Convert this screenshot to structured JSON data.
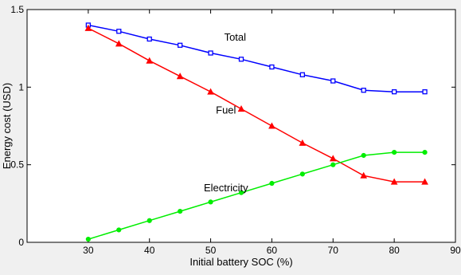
{
  "chart_data": {
    "type": "line",
    "title": "",
    "xlabel": "Initial battery SOC (%)",
    "ylabel": "Energy cost (USD)",
    "xlim": [
      20,
      90
    ],
    "ylim": [
      0,
      1.5
    ],
    "xticks": [
      30,
      40,
      50,
      60,
      70,
      80,
      90
    ],
    "yticks": [
      0,
      0.5,
      1,
      1.5
    ],
    "xtick_labels": [
      "30",
      "40",
      "50",
      "60",
      "70",
      "80",
      "90"
    ],
    "ytick_labels": [
      "0",
      "0.5",
      "1",
      "1.5"
    ],
    "grid": false,
    "legend": "none",
    "x": [
      30,
      35,
      40,
      45,
      50,
      55,
      60,
      65,
      70,
      75,
      80,
      85
    ],
    "series": [
      {
        "name": "Total",
        "color": "#0000ff",
        "marker": "square",
        "values": [
          1.4,
          1.36,
          1.31,
          1.27,
          1.22,
          1.18,
          1.13,
          1.08,
          1.04,
          0.98,
          0.97,
          0.97
        ]
      },
      {
        "name": "Fuel",
        "color": "#ff0000",
        "marker": "triangle",
        "values": [
          1.38,
          1.28,
          1.17,
          1.07,
          0.97,
          0.86,
          0.75,
          0.64,
          0.54,
          0.43,
          0.39,
          0.39
        ]
      },
      {
        "name": "Electricity",
        "color": "#00ee00",
        "marker": "circle",
        "values": [
          0.02,
          0.08,
          0.14,
          0.2,
          0.26,
          0.32,
          0.38,
          0.44,
          0.5,
          0.56,
          0.58,
          0.58
        ]
      }
    ],
    "annotations": [
      {
        "text": "Total",
        "x": 54,
        "y": 1.32
      },
      {
        "text": "Fuel",
        "x": 52.5,
        "y": 0.85
      },
      {
        "text": "Electricity",
        "x": 52.5,
        "y": 0.35
      }
    ]
  }
}
